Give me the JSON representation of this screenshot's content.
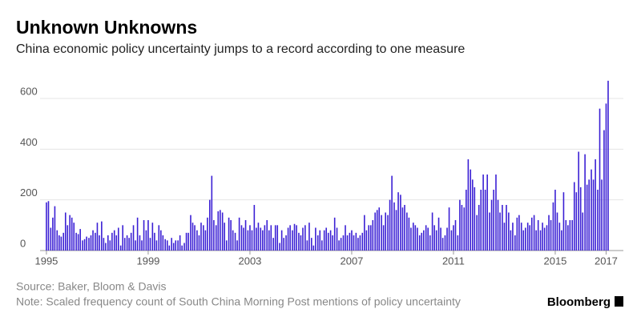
{
  "chart_data": {
    "type": "bar",
    "title": "Unknown Unknowns",
    "subtitle": "China economic policy uncertainty jumps to a record according to one measure",
    "source": "Source: Baker, Bloom & Davis",
    "note": "Note: Scaled frequency count of South China Morning Post mentions of policy uncertainty",
    "brand": "Bloomberg",
    "color": "#3a1fd4",
    "grid": true,
    "xlim": [
      1994.8,
      2017.2
    ],
    "xticks": [
      1995,
      1999,
      2003,
      2007,
      2011,
      2015,
      2017
    ],
    "ylim": [
      0,
      680
    ],
    "yticks": [
      0,
      200,
      400,
      600
    ],
    "x": [
      1995,
      1995.08,
      1995.17,
      1995.25,
      1995.33,
      1995.42,
      1995.5,
      1995.58,
      1995.67,
      1995.75,
      1995.83,
      1995.92,
      1996,
      1996.08,
      1996.17,
      1996.25,
      1996.33,
      1996.42,
      1996.5,
      1996.58,
      1996.67,
      1996.75,
      1996.83,
      1996.92,
      1997,
      1997.08,
      1997.17,
      1997.25,
      1997.33,
      1997.42,
      1997.5,
      1997.58,
      1997.67,
      1997.75,
      1997.83,
      1997.92,
      1998,
      1998.08,
      1998.17,
      1998.25,
      1998.33,
      1998.42,
      1998.5,
      1998.58,
      1998.67,
      1998.75,
      1998.83,
      1998.92,
      1999,
      1999.08,
      1999.17,
      1999.25,
      1999.33,
      1999.42,
      1999.5,
      1999.58,
      1999.67,
      1999.75,
      1999.83,
      1999.92,
      2000,
      2000.08,
      2000.17,
      2000.25,
      2000.33,
      2000.42,
      2000.5,
      2000.58,
      2000.67,
      2000.75,
      2000.83,
      2000.92,
      2001,
      2001.08,
      2001.17,
      2001.25,
      2001.33,
      2001.42,
      2001.5,
      2001.58,
      2001.67,
      2001.75,
      2001.83,
      2001.92,
      2002,
      2002.08,
      2002.17,
      2002.25,
      2002.33,
      2002.42,
      2002.5,
      2002.58,
      2002.67,
      2002.75,
      2002.83,
      2002.92,
      2003,
      2003.08,
      2003.17,
      2003.25,
      2003.33,
      2003.42,
      2003.5,
      2003.58,
      2003.67,
      2003.75,
      2003.83,
      2003.92,
      2004,
      2004.08,
      2004.17,
      2004.25,
      2004.33,
      2004.42,
      2004.5,
      2004.58,
      2004.67,
      2004.75,
      2004.83,
      2004.92,
      2005,
      2005.08,
      2005.17,
      2005.25,
      2005.33,
      2005.42,
      2005.5,
      2005.58,
      2005.67,
      2005.75,
      2005.83,
      2005.92,
      2006,
      2006.08,
      2006.17,
      2006.25,
      2006.33,
      2006.42,
      2006.5,
      2006.58,
      2006.67,
      2006.75,
      2006.83,
      2006.92,
      2007,
      2007.08,
      2007.17,
      2007.25,
      2007.33,
      2007.42,
      2007.5,
      2007.58,
      2007.67,
      2007.75,
      2007.83,
      2007.92,
      2008,
      2008.08,
      2008.17,
      2008.25,
      2008.33,
      2008.42,
      2008.5,
      2008.58,
      2008.67,
      2008.75,
      2008.83,
      2008.92,
      2009,
      2009.08,
      2009.17,
      2009.25,
      2009.33,
      2009.42,
      2009.5,
      2009.58,
      2009.67,
      2009.75,
      2009.83,
      2009.92,
      2010,
      2010.08,
      2010.17,
      2010.25,
      2010.33,
      2010.42,
      2010.5,
      2010.58,
      2010.67,
      2010.75,
      2010.83,
      2010.92,
      2011,
      2011.08,
      2011.17,
      2011.25,
      2011.33,
      2011.42,
      2011.5,
      2011.58,
      2011.67,
      2011.75,
      2011.83,
      2011.92,
      2012,
      2012.08,
      2012.17,
      2012.25,
      2012.33,
      2012.42,
      2012.5,
      2012.58,
      2012.67,
      2012.75,
      2012.83,
      2012.92,
      2013,
      2013.08,
      2013.17,
      2013.25,
      2013.33,
      2013.42,
      2013.5,
      2013.58,
      2013.67,
      2013.75,
      2013.83,
      2013.92,
      2014,
      2014.08,
      2014.17,
      2014.25,
      2014.33,
      2014.42,
      2014.5,
      2014.58,
      2014.67,
      2014.75,
      2014.83,
      2014.92,
      2015,
      2015.08,
      2015.17,
      2015.25,
      2015.33,
      2015.42,
      2015.5,
      2015.58,
      2015.67,
      2015.75,
      2015.83,
      2015.92,
      2016,
      2016.08,
      2016.17,
      2016.25,
      2016.33,
      2016.42,
      2016.5,
      2016.58,
      2016.67,
      2016.75,
      2016.83,
      2016.92,
      2017,
      2017.08
    ],
    "values": [
      190,
      195,
      90,
      130,
      175,
      80,
      60,
      55,
      70,
      150,
      100,
      140,
      130,
      110,
      70,
      65,
      85,
      40,
      45,
      55,
      50,
      60,
      80,
      70,
      110,
      60,
      115,
      50,
      30,
      60,
      40,
      70,
      80,
      60,
      90,
      20,
      100,
      50,
      60,
      50,
      70,
      100,
      40,
      130,
      60,
      40,
      120,
      80,
      120,
      50,
      110,
      70,
      40,
      100,
      80,
      60,
      45,
      40,
      20,
      50,
      30,
      40,
      40,
      60,
      20,
      30,
      70,
      70,
      140,
      110,
      100,
      80,
      60,
      110,
      100,
      80,
      130,
      200,
      295,
      120,
      100,
      155,
      160,
      150,
      110,
      40,
      130,
      120,
      80,
      70,
      40,
      130,
      100,
      90,
      120,
      80,
      100,
      80,
      180,
      90,
      110,
      90,
      80,
      100,
      120,
      80,
      100,
      50,
      100,
      100,
      30,
      80,
      50,
      60,
      90,
      100,
      80,
      105,
      100,
      70,
      60,
      90,
      100,
      40,
      110,
      50,
      20,
      90,
      60,
      80,
      40,
      80,
      90,
      70,
      80,
      60,
      130,
      90,
      40,
      50,
      60,
      100,
      60,
      70,
      80,
      60,
      70,
      50,
      60,
      70,
      140,
      80,
      100,
      100,
      120,
      150,
      160,
      170,
      140,
      100,
      150,
      140,
      200,
      295,
      190,
      160,
      230,
      220,
      170,
      180,
      150,
      130,
      90,
      110,
      100,
      90,
      60,
      70,
      80,
      100,
      90,
      60,
      150,
      100,
      80,
      130,
      90,
      50,
      60,
      90,
      170,
      80,
      100,
      120,
      60,
      200,
      180,
      170,
      240,
      360,
      320,
      280,
      250,
      140,
      180,
      240,
      300,
      240,
      300,
      150,
      200,
      240,
      300,
      200,
      150,
      180,
      110,
      180,
      150,
      80,
      110,
      60,
      130,
      140,
      110,
      80,
      90,
      110,
      100,
      130,
      140,
      80,
      120,
      80,
      110,
      90,
      100,
      140,
      120,
      190,
      240,
      150,
      110,
      80,
      230,
      120,
      100,
      120,
      120,
      270,
      230,
      390,
      250,
      150,
      380,
      260,
      280,
      320,
      280,
      360,
      240,
      560,
      280,
      475,
      580,
      670
    ]
  }
}
